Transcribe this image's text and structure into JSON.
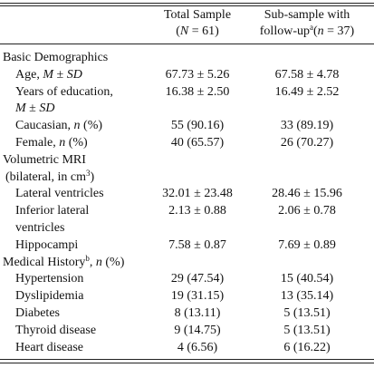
{
  "table": {
    "columns": [
      [
        "Total Sample",
        "(",
        "N",
        " = 61)"
      ],
      [
        "Sub-sample with",
        "follow-up",
        "a",
        "(",
        "n",
        " = 37)"
      ]
    ],
    "rows": [
      {
        "label": [
          "Basic Demographics"
        ]
      },
      {
        "label": [
          "Age, ",
          "M",
          " ± ",
          "SD"
        ],
        "values": [
          "67.73 ± 5.26",
          "67.58 ± 4.78"
        ]
      },
      {
        "label": [
          "Years of education,",
          "M",
          " ± ",
          "SD"
        ],
        "values": [
          "16.38 ± 2.50",
          "16.49 ± 2.52"
        ]
      },
      {
        "label": [
          "Caucasian, ",
          "n",
          " (%)"
        ],
        "values": [
          "55 (90.16)",
          "33 (89.19)"
        ]
      },
      {
        "label": [
          "Female, ",
          "n",
          " (%)"
        ],
        "values": [
          "40 (65.57)",
          "26 (70.27)"
        ]
      },
      {
        "label": [
          "Volumetric MRI",
          "(bilateral, in cm",
          "3",
          ")"
        ]
      },
      {
        "label": [
          "Lateral ventricles"
        ],
        "values": [
          "32.01 ± 23.48",
          "28.46 ± 15.96"
        ]
      },
      {
        "label": [
          "Inferior lateral",
          "ventricles"
        ],
        "values": [
          "2.13 ± 0.88",
          "2.06 ± 0.78"
        ]
      },
      {
        "label": [
          "Hippocampi"
        ],
        "values": [
          "7.58 ± 0.87",
          "7.69 ± 0.89"
        ]
      },
      {
        "label": [
          "Medical History",
          "b",
          ", ",
          "n",
          " (%)"
        ]
      },
      {
        "label": [
          "Hypertension"
        ],
        "values": [
          "29 (47.54)",
          "15 (40.54)"
        ]
      },
      {
        "label": [
          "Dyslipidemia"
        ],
        "values": [
          "19 (31.15)",
          "13 (35.14)"
        ]
      },
      {
        "label": [
          "Diabetes"
        ],
        "values": [
          "8 (13.11)",
          "5 (13.51)"
        ]
      },
      {
        "label": [
          "Thyroid disease"
        ],
        "values": [
          "9 (14.75)",
          "5 (13.51)"
        ]
      },
      {
        "label": [
          "Heart disease"
        ],
        "values": [
          "4 (6.56)",
          "6 (16.22)"
        ]
      }
    ]
  }
}
